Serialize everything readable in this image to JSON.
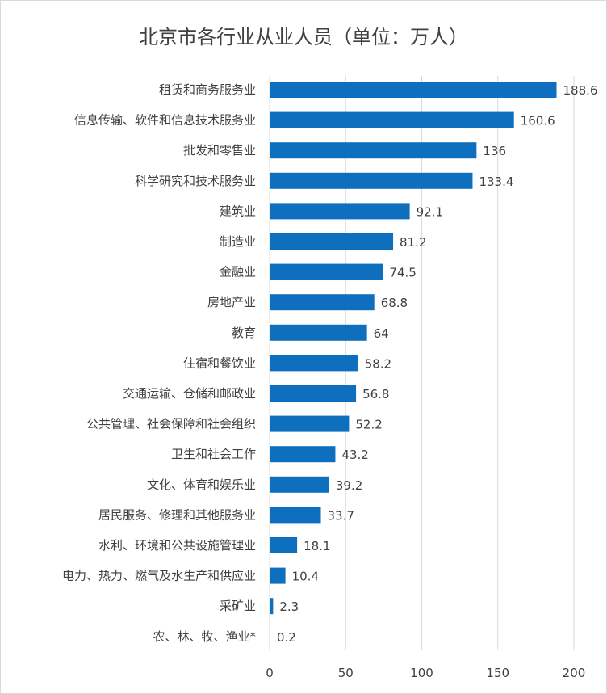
{
  "chart_data": {
    "type": "bar",
    "orientation": "horizontal",
    "title": "北京市各行业从业人员（单位：万人）",
    "categories": [
      "租赁和商务服务业",
      "信息传输、软件和信息技术服务业",
      "批发和零售业",
      "科学研究和技术服务业",
      "建筑业",
      "制造业",
      "金融业",
      "房地产业",
      "教育",
      "住宿和餐饮业",
      "交通运输、仓储和邮政业",
      "公共管理、社会保障和社会组织",
      "卫生和社会工作",
      "文化、体育和娱乐业",
      "居民服务、修理和其他服务业",
      "水利、环境和公共设施管理业",
      "电力、热力、燃气及水生产和供应业",
      "采矿业",
      "农、林、牧、渔业*"
    ],
    "values": [
      188.6,
      160.6,
      136,
      133.4,
      92.1,
      81.2,
      74.5,
      68.8,
      64,
      58.2,
      56.8,
      52.2,
      43.2,
      39.2,
      33.7,
      18.1,
      10.4,
      2.3,
      0.2
    ],
    "xlim": [
      0,
      200
    ],
    "xticks": [
      "0",
      "50",
      "100",
      "150",
      "200"
    ],
    "xlabel": "",
    "ylabel": "",
    "grid": true,
    "bar_color": "#0e6fbe",
    "gridline_color": "#d9d9d9",
    "text_color": "#404040"
  }
}
